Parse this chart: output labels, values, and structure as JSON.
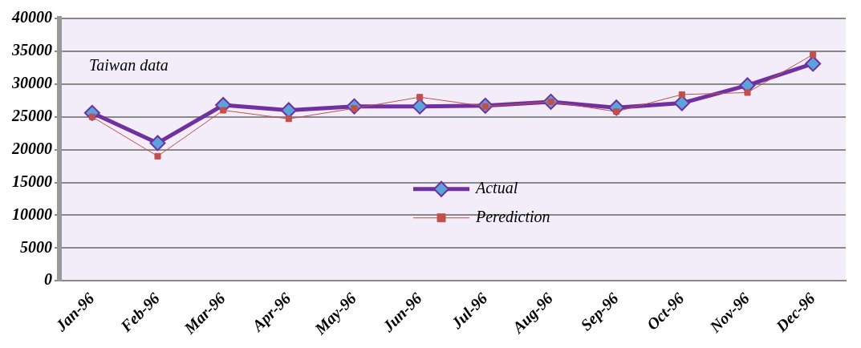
{
  "chart_data": {
    "type": "line",
    "categories": [
      "Jan-96",
      "Feb-96",
      "Mar-96",
      "Apr-96",
      "May-96",
      "Jun-96",
      "Jul-96",
      "Aug-96",
      "Sep-96",
      "Oct-96",
      "Nov-96",
      "Dec-96"
    ],
    "series": [
      {
        "name": "Actual",
        "color": "#7030a0",
        "marker": "diamond",
        "values": [
          25600,
          21000,
          26800,
          26000,
          26600,
          26600,
          26700,
          27300,
          26400,
          27100,
          29800,
          33100
        ]
      },
      {
        "name": "Perediction",
        "color": "#c0504d",
        "marker": "square",
        "values": [
          25000,
          19000,
          26000,
          24700,
          26300,
          28000,
          26600,
          27300,
          25800,
          28400,
          28700,
          34500
        ]
      }
    ],
    "ylim": [
      0,
      40000
    ],
    "yticks": [
      0,
      5000,
      10000,
      15000,
      20000,
      25000,
      30000,
      35000,
      40000
    ],
    "grid": "y",
    "legend": "center",
    "annotations": [
      "Taiwan data"
    ]
  }
}
